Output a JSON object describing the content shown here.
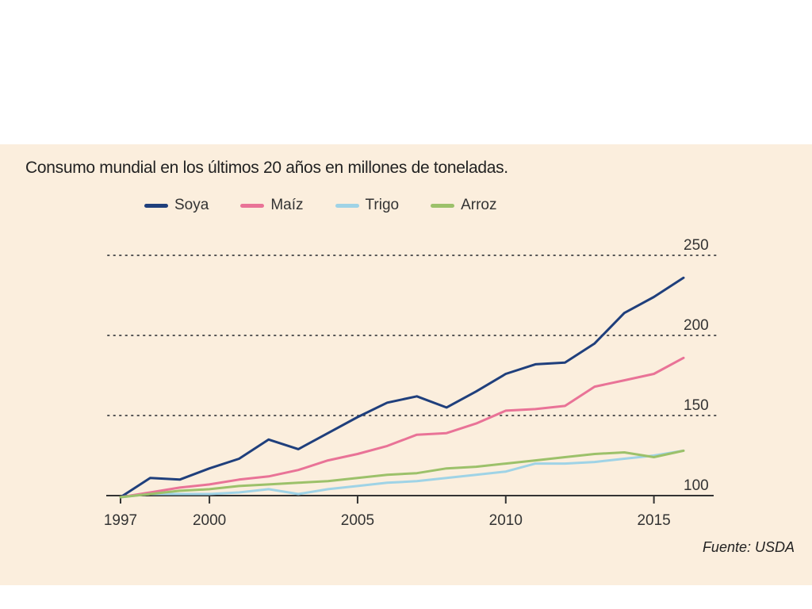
{
  "chart_data": {
    "type": "line",
    "title": "Consumo mundial en los últimos 20 años en millones de toneladas.",
    "source": "Fuente: USDA",
    "xlabel": "",
    "ylabel": "",
    "xlim": [
      1997,
      2016
    ],
    "ylim": [
      100,
      250
    ],
    "x_ticks": [
      1997,
      2000,
      2005,
      2010,
      2015
    ],
    "y_ticks": [
      100,
      150,
      200,
      250
    ],
    "grid": "horizontal dotted",
    "legend_position": "top",
    "x": [
      1997,
      1998,
      1999,
      2000,
      2001,
      2002,
      2003,
      2004,
      2005,
      2006,
      2007,
      2008,
      2009,
      2010,
      2011,
      2012,
      2013,
      2014,
      2015,
      2016
    ],
    "series": [
      {
        "name": "Soya",
        "color": "#1f3f7c",
        "values": [
          99,
          111,
          110,
          117,
          123,
          135,
          129,
          139,
          149,
          158,
          162,
          155,
          165,
          176,
          182,
          183,
          195,
          214,
          224,
          236
        ]
      },
      {
        "name": "Maíz",
        "color": "#e97397",
        "values": [
          99,
          102,
          105,
          107,
          110,
          112,
          116,
          122,
          126,
          131,
          138,
          139,
          145,
          153,
          154,
          156,
          168,
          172,
          176,
          186
        ]
      },
      {
        "name": "Trigo",
        "color": "#9fd3e6",
        "values": [
          99,
          101,
          101,
          101,
          102,
          104,
          101,
          104,
          106,
          108,
          109,
          111,
          113,
          115,
          120,
          120,
          121,
          123,
          125,
          128
        ]
      },
      {
        "name": "Arroz",
        "color": "#9cc16a",
        "values": [
          99,
          101,
          103,
          104,
          106,
          107,
          108,
          109,
          111,
          113,
          114,
          117,
          118,
          120,
          122,
          124,
          126,
          127,
          124,
          128
        ]
      }
    ]
  }
}
